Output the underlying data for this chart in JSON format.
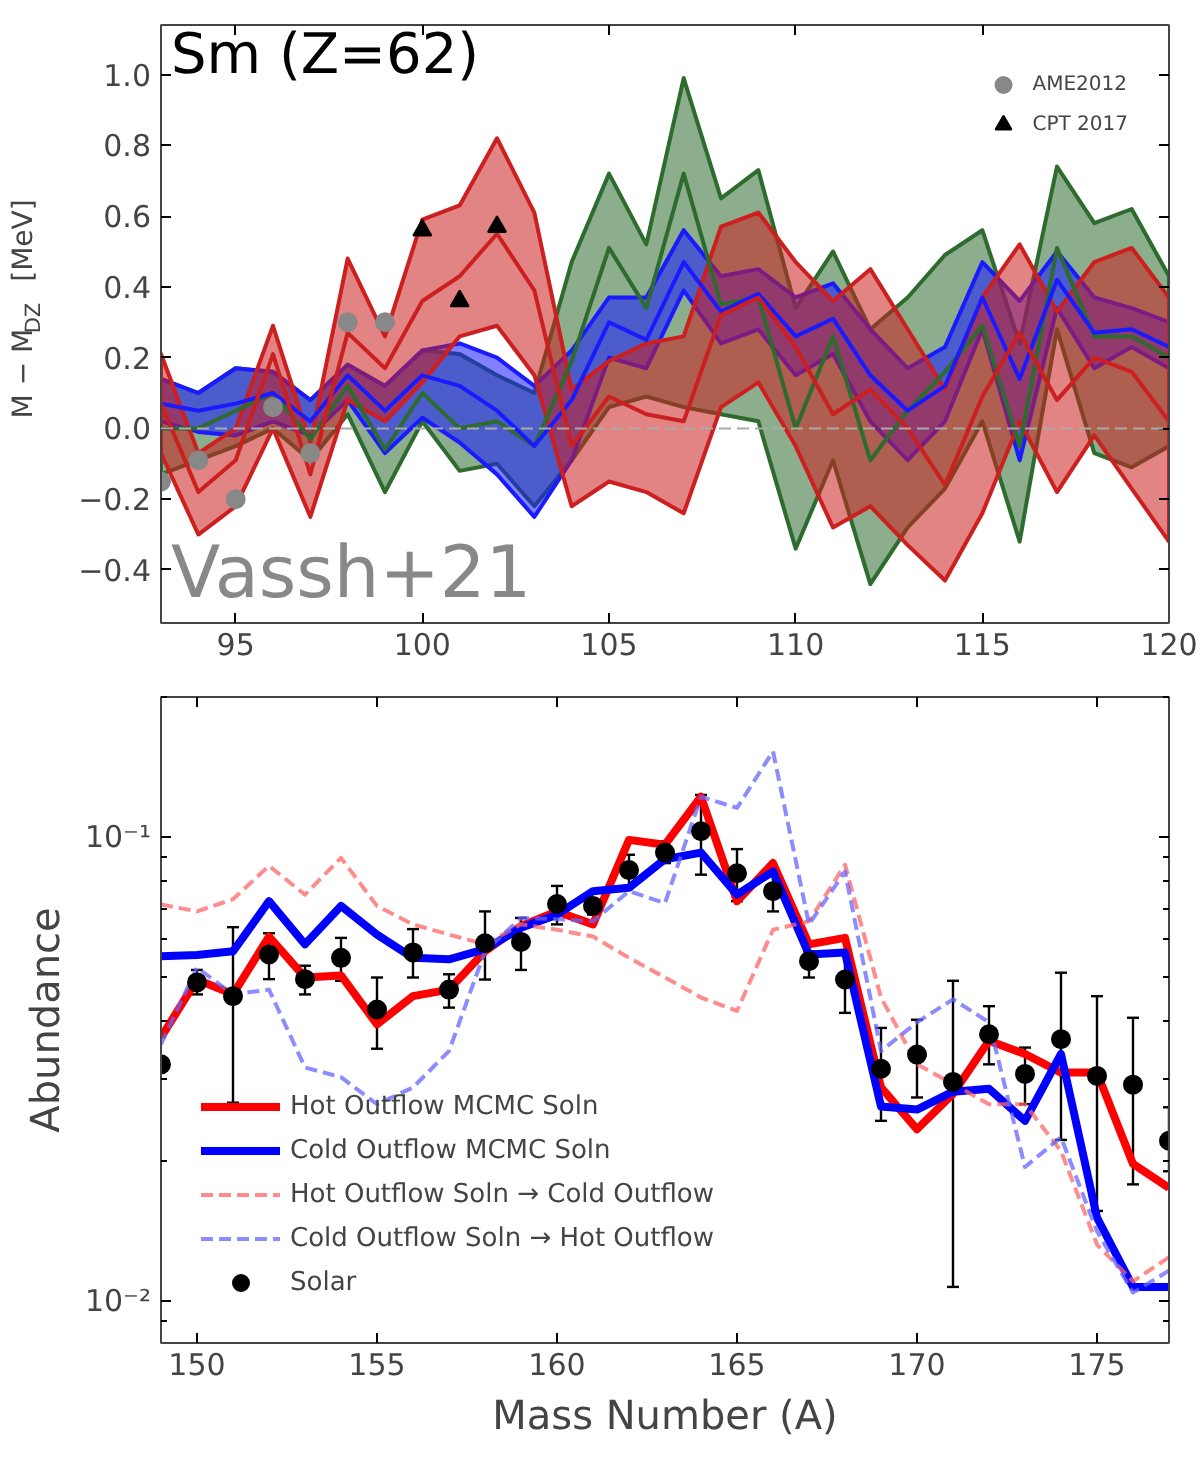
{
  "chart_data": [
    {
      "type": "line",
      "ylabel": "M − M$_{DZ}$  [MeV]",
      "annotations": [
        "Sm (Z=62)",
        "Vassh+21"
      ],
      "xlim": [
        93,
        120
      ],
      "ylim": [
        -0.55,
        1.14
      ],
      "xticks": [
        95,
        100,
        105,
        110,
        115,
        120
      ],
      "yticks": [
        {
          "value": -0.4,
          "label": "−0.4"
        },
        {
          "value": -0.2,
          "label": "−0.2"
        },
        {
          "value": 0.0,
          "label": "0.0"
        },
        {
          "value": 0.2,
          "label": "0.2"
        },
        {
          "value": 0.4,
          "label": "0.4"
        },
        {
          "value": 0.6,
          "label": "0.6"
        },
        {
          "value": 0.8,
          "label": "0.8"
        },
        {
          "value": 1.0,
          "label": "1.0"
        }
      ],
      "grid": false,
      "legend": "top right",
      "marker": "none",
      "line_style": "solid",
      "ref_lines": [
        {
          "axis": "y",
          "value": 0,
          "color": "#aaaaaa",
          "line_style": "dashed"
        }
      ],
      "series": [
        {
          "type": "line",
          "color": "#2e6b2e",
          "x": [
            93,
            94,
            95,
            96,
            97,
            98,
            99,
            100,
            101,
            102,
            103,
            104,
            105,
            106,
            107,
            108,
            109,
            110,
            111,
            112,
            113,
            114,
            115,
            116,
            117,
            118,
            119,
            120
          ],
          "values": [
            0.0,
            0.0,
            0.05,
            0.1,
            -0.03,
            0.12,
            -0.06,
            0.1,
            0.0,
            0.02,
            -0.05,
            0.19,
            0.51,
            0.34,
            0.72,
            0.35,
            0.37,
            0.0,
            0.26,
            -0.09,
            0.05,
            0.16,
            0.29,
            -0.05,
            0.51,
            0.26,
            0.26,
            0.2
          ],
          "lower": [
            -0.13,
            -0.09,
            -0.05,
            0.0,
            -0.09,
            0.04,
            -0.18,
            0.02,
            -0.12,
            -0.1,
            -0.22,
            -0.09,
            0.06,
            0.09,
            0.06,
            0.04,
            0.02,
            -0.34,
            -0.09,
            -0.44,
            -0.28,
            -0.17,
            0.02,
            -0.32,
            0.28,
            -0.07,
            -0.11,
            -0.05
          ],
          "upper": [
            0.14,
            0.1,
            0.17,
            0.16,
            0.08,
            0.18,
            0.12,
            0.22,
            0.21,
            0.15,
            0.1,
            0.47,
            0.72,
            0.52,
            0.99,
            0.65,
            0.73,
            0.34,
            0.5,
            0.28,
            0.37,
            0.49,
            0.56,
            0.24,
            0.74,
            0.58,
            0.62,
            0.43
          ]
        },
        {
          "type": "line",
          "color": "#1a1aff",
          "x": [
            93,
            94,
            95,
            96,
            97,
            98,
            99,
            100,
            101,
            102,
            103,
            104,
            105,
            106,
            107,
            108,
            109,
            110,
            111,
            112,
            113,
            114,
            115,
            116,
            117,
            118,
            119,
            120
          ],
          "values": [
            0.07,
            0.05,
            0.07,
            0.1,
            0.02,
            0.15,
            0.05,
            0.15,
            0.12,
            0.05,
            -0.05,
            0.08,
            0.3,
            0.25,
            0.47,
            0.33,
            0.38,
            0.26,
            0.31,
            0.15,
            0.05,
            0.12,
            0.37,
            0.14,
            0.42,
            0.27,
            0.28,
            0.23
          ],
          "lower": [
            0.02,
            -0.01,
            -0.02,
            0.02,
            -0.02,
            0.08,
            -0.07,
            0.03,
            -0.04,
            -0.13,
            -0.25,
            -0.09,
            0.2,
            0.17,
            0.39,
            0.24,
            0.28,
            0.15,
            0.21,
            0.02,
            -0.09,
            0.02,
            0.28,
            -0.09,
            0.34,
            0.17,
            0.23,
            0.17
          ],
          "upper": [
            0.14,
            0.1,
            0.17,
            0.16,
            0.08,
            0.18,
            0.12,
            0.22,
            0.24,
            0.2,
            0.12,
            0.22,
            0.37,
            0.37,
            0.56,
            0.43,
            0.45,
            0.37,
            0.41,
            0.28,
            0.17,
            0.23,
            0.47,
            0.36,
            0.5,
            0.37,
            0.34,
            0.3
          ]
        },
        {
          "type": "line",
          "color": "#cc1f1f",
          "x": [
            93,
            94,
            95,
            96,
            97,
            98,
            99,
            100,
            101,
            102,
            103,
            104,
            105,
            106,
            107,
            108,
            109,
            110,
            111,
            112,
            113,
            114,
            115,
            116,
            117,
            118,
            119,
            120
          ],
          "values": [
            0.07,
            -0.18,
            -0.09,
            0.21,
            -0.13,
            0.27,
            0.17,
            0.36,
            0.43,
            0.55,
            0.39,
            -0.05,
            0.09,
            0.04,
            0.02,
            0.32,
            0.37,
            0.23,
            0.04,
            0.11,
            0.0,
            -0.16,
            0.09,
            0.27,
            0.08,
            0.2,
            0.16,
            0.02
          ],
          "lower": [
            -0.07,
            -0.3,
            -0.22,
            0.0,
            -0.25,
            0.08,
            0.02,
            0.13,
            0.26,
            0.29,
            0.15,
            -0.22,
            -0.15,
            -0.18,
            -0.24,
            0.06,
            0.13,
            -0.05,
            -0.28,
            -0.22,
            -0.33,
            -0.43,
            -0.24,
            0.02,
            -0.18,
            -0.02,
            -0.17,
            -0.32
          ],
          "upper": [
            0.21,
            -0.07,
            0.0,
            0.29,
            -0.04,
            0.48,
            0.26,
            0.59,
            0.63,
            0.82,
            0.61,
            0.11,
            0.19,
            0.24,
            0.26,
            0.57,
            0.61,
            0.47,
            0.36,
            0.45,
            0.28,
            0.11,
            0.37,
            0.52,
            0.33,
            0.47,
            0.51,
            0.37
          ]
        },
        {
          "type": "scatter",
          "name": "AME2012",
          "color": "#888888",
          "marker": "circle",
          "x": [
            93,
            94,
            95,
            96,
            97,
            98,
            99
          ],
          "values": [
            -0.15,
            -0.09,
            -0.2,
            0.06,
            -0.07,
            0.3,
            0.3
          ]
        },
        {
          "type": "scatter",
          "name": "CPT 2017",
          "color": "#000000",
          "marker": "triangle",
          "x": [
            100,
            101,
            102
          ],
          "values": [
            0.56,
            0.36,
            0.57
          ]
        }
      ]
    },
    {
      "type": "line",
      "xlabel": "Mass Number (A)",
      "ylabel": "Abundance",
      "log": "y",
      "xlim": [
        149,
        177
      ],
      "ylim": [
        0.0081,
        0.2
      ],
      "xticks": [
        150,
        155,
        160,
        165,
        170,
        175
      ],
      "yticks": [
        {
          "value": 0.009,
          "label": null
        },
        {
          "value": 0.01,
          "label": "10⁻²"
        },
        {
          "value": 0.02,
          "label": null
        },
        {
          "value": 0.03,
          "label": null
        },
        {
          "value": 0.04,
          "label": null
        },
        {
          "value": 0.05,
          "label": null
        },
        {
          "value": 0.06,
          "label": null
        },
        {
          "value": 0.07,
          "label": null
        },
        {
          "value": 0.08,
          "label": null
        },
        {
          "value": 0.09,
          "label": null
        },
        {
          "value": 0.1,
          "label": "10⁻¹"
        },
        {
          "value": 0.2,
          "label": null
        }
      ],
      "grid": false,
      "legend": "bottom left",
      "series": [
        {
          "type": "line",
          "name": "Hot Outflow MCMC Soln",
          "color": "#ff0000",
          "line_style": "solid",
          "x": [
            149,
            150,
            151,
            152,
            153,
            154,
            155,
            156,
            157,
            158,
            159,
            160,
            161,
            162,
            163,
            164,
            165,
            166,
            167,
            168,
            169,
            170,
            171,
            172,
            173,
            174,
            175,
            176,
            177
          ],
          "values": [
            0.0369,
            0.0492,
            0.0457,
            0.0609,
            0.0497,
            0.0502,
            0.0394,
            0.0453,
            0.0468,
            0.0566,
            0.0642,
            0.069,
            0.0647,
            0.0984,
            0.0961,
            0.1219,
            0.0726,
            0.0877,
            0.0586,
            0.0605,
            0.0288,
            0.0234,
            0.0279,
            0.0363,
            0.034,
            0.031,
            0.031,
            0.0197,
            0.0175
          ]
        },
        {
          "type": "line",
          "name": "Cold Outflow MCMC Soln",
          "color": "#0000ff",
          "line_style": "solid",
          "x": [
            149,
            150,
            151,
            152,
            153,
            154,
            155,
            156,
            157,
            158,
            159,
            160,
            161,
            162,
            163,
            164,
            165,
            166,
            167,
            168,
            169,
            170,
            171,
            172,
            173,
            174,
            175,
            176,
            177
          ],
          "values": [
            0.0552,
            0.0556,
            0.0566,
            0.0726,
            0.0586,
            0.0709,
            0.0615,
            0.0548,
            0.0544,
            0.0572,
            0.0636,
            0.0679,
            0.0763,
            0.0776,
            0.0894,
            0.0924,
            0.075,
            0.0841,
            0.0557,
            0.0563,
            0.0262,
            0.0258,
            0.0282,
            0.0286,
            0.0244,
            0.034,
            0.0151,
            0.0107,
            0.0107
          ]
        },
        {
          "type": "line",
          "name": "Hot Outflow Soln → Cold Outflow",
          "color": "#ff6666",
          "line_style": "dashed",
          "x": [
            149,
            150,
            151,
            152,
            153,
            154,
            155,
            156,
            157,
            158,
            159,
            160,
            161,
            162,
            163,
            164,
            165,
            166,
            167,
            168,
            169,
            170,
            171,
            172,
            173,
            174,
            175,
            176,
            177
          ],
          "values": [
            0.0714,
            0.069,
            0.0733,
            0.0865,
            0.075,
            0.09,
            0.0709,
            0.0647,
            0.0615,
            0.0586,
            0.0647,
            0.063,
            0.0609,
            0.0548,
            0.0497,
            0.045,
            0.0421,
            0.063,
            0.0657,
            0.087,
            0.045,
            0.0323,
            0.0293,
            0.0265,
            0.0265,
            0.021,
            0.0132,
            0.011,
            0.0124
          ]
        },
        {
          "type": "line",
          "name": "Cold Outflow Soln → Hot Outflow",
          "color": "#6666ff",
          "line_style": "dashed",
          "x": [
            149,
            150,
            151,
            152,
            153,
            154,
            155,
            156,
            157,
            158,
            159,
            160,
            161,
            162,
            163,
            164,
            165,
            166,
            167,
            168,
            169,
            170,
            171,
            172,
            173,
            174,
            175,
            176,
            177
          ],
          "values": [
            0.0357,
            0.0522,
            0.0457,
            0.0468,
            0.0318,
            0.0303,
            0.0265,
            0.0288,
            0.0345,
            0.0566,
            0.0668,
            0.0664,
            0.0657,
            0.0763,
            0.0719,
            0.1219,
            0.1153,
            0.1527,
            0.0647,
            0.0841,
            0.0345,
            0.0398,
            0.0446,
            0.0398,
            0.0194,
            0.0225,
            0.0141,
            0.0104,
            0.0116
          ]
        },
        {
          "type": "scatter",
          "name": "Solar",
          "color": "#000000",
          "marker": "circle",
          "x": [
            149,
            150,
            151,
            152,
            153,
            154,
            155,
            156,
            157,
            158,
            159,
            160,
            161,
            162,
            163,
            164,
            165,
            166,
            167,
            168,
            169,
            170,
            171,
            172,
            173,
            174,
            175,
            176,
            177
          ],
          "values": [
            0.0323,
            0.0485,
            0.0453,
            0.0557,
            0.0493,
            0.0548,
            0.0424,
            0.0563,
            0.0468,
            0.0589,
            0.0593,
            0.0716,
            0.0709,
            0.0847,
            0.0924,
            0.1027,
            0.0834,
            0.0763,
            0.0539,
            0.0492,
            0.0316,
            0.0339,
            0.0296,
            0.0375,
            0.0308,
            0.0366,
            0.0305,
            0.0292,
            0.0221
          ],
          "errors": [
            null,
            [
              0.0457,
              0.0516
            ],
            [
              0.0267,
              0.0638
            ],
            [
              0.0493,
              0.0619
            ],
            [
              0.0457,
              0.0527
            ],
            [
              0.0489,
              0.0605
            ],
            [
              0.0349,
              0.0497
            ],
            [
              0.0497,
              0.0632
            ],
            [
              0.0428,
              0.0505
            ],
            [
              0.0492,
              0.069
            ],
            [
              0.0516,
              0.0668
            ],
            [
              0.0647,
              0.0783
            ],
            [
              0.0679,
              0.0733
            ],
            [
              0.0783,
              0.0914
            ],
            [
              0.0877,
              0.0977
            ],
            [
              0.0828,
              0.123
            ],
            [
              0.0726,
              0.094
            ],
            [
              0.069,
              0.0841
            ],
            [
              0.0497,
              0.0566
            ],
            [
              0.0417,
              0.0566
            ],
            [
              0.0244,
              0.0387
            ],
            [
              0.0274,
              0.0403
            ],
            [
              0.0107,
              0.0489
            ],
            [
              0.0323,
              0.0431
            ],
            [
              0.0265,
              0.0351
            ],
            [
              0.0222,
              0.0509
            ],
            [
              0.0156,
              0.0453
            ],
            [
              0.0178,
              0.0407
            ],
            [
              0.019,
              0.0261
            ]
          ]
        }
      ]
    }
  ]
}
